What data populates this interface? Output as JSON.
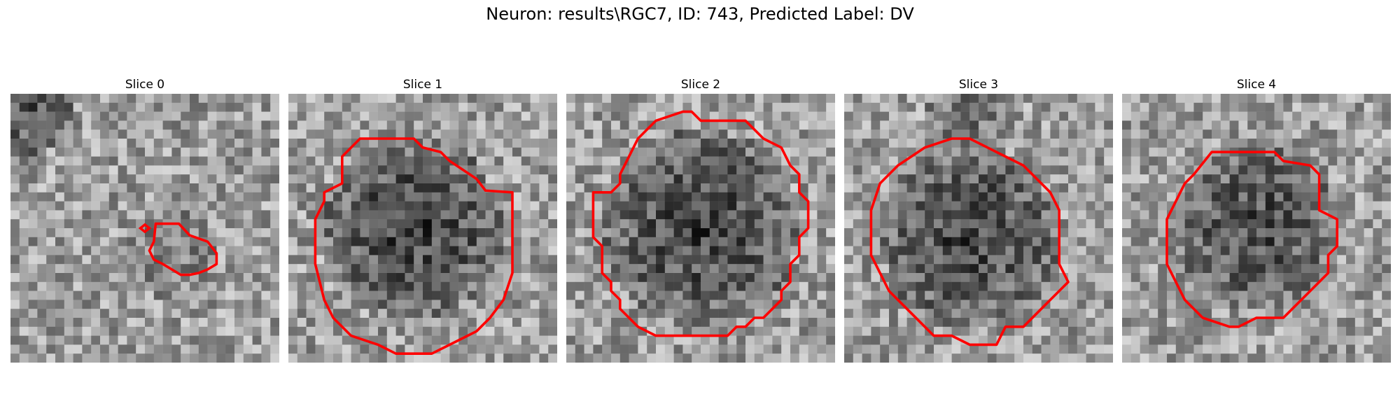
{
  "figure": {
    "title": "Neuron: results\\RGC7, ID: 743, Predicted Label: DV"
  },
  "panels": [
    {
      "title": "Slice 0"
    },
    {
      "title": "Slice 1"
    },
    {
      "title": "Slice 2"
    },
    {
      "title": "Slice 3"
    },
    {
      "title": "Slice 4"
    }
  ],
  "colors": {
    "contour": "#ff0000",
    "background": "#ffffff"
  }
}
